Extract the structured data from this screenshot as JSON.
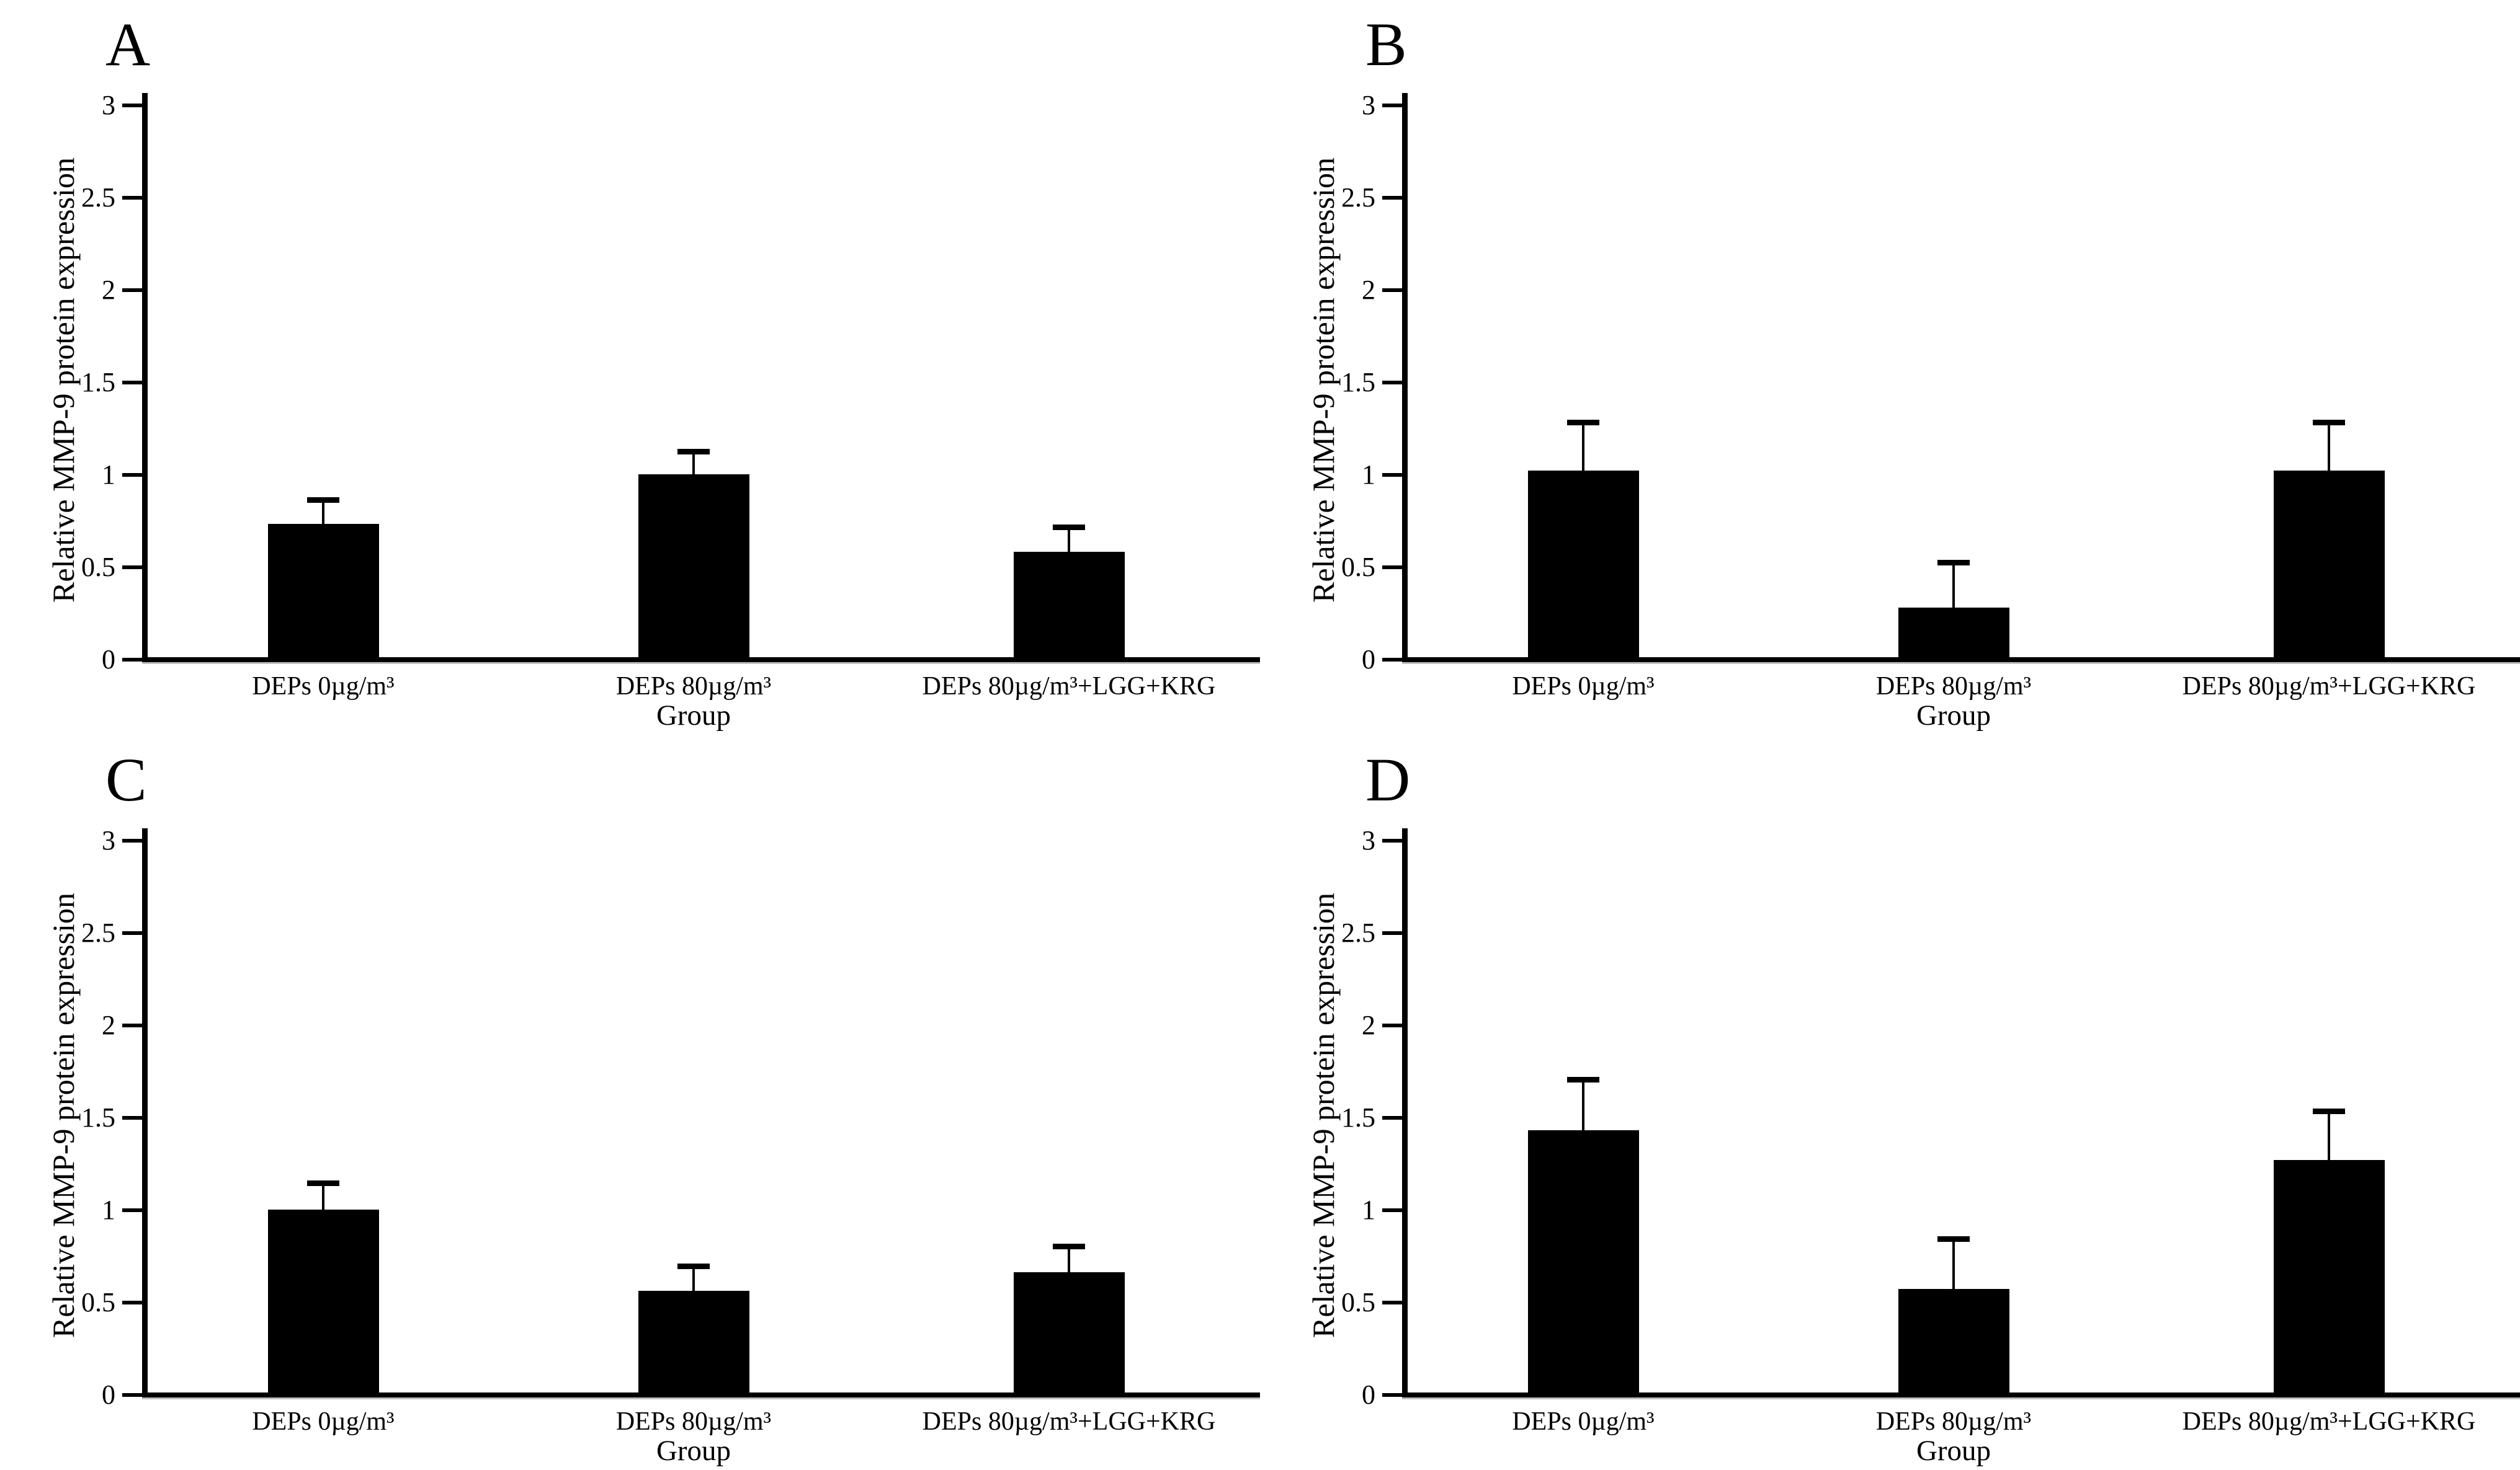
{
  "figure": {
    "background_color": "#ffffff",
    "bar_color": "#000000",
    "axis_color": "#000000",
    "grid": false,
    "legend": null
  },
  "chart_data": [
    {
      "type": "bar",
      "panel": "A",
      "title": "",
      "xlabel": "Group",
      "ylabel": "Relative MMP-9 protein expression",
      "categories": [
        "DEPs 0µg/m³",
        "DEPs 80µg/m³",
        "DEPs 80µg/m³+LGG+KRG"
      ],
      "values": [
        0.72,
        0.99,
        0.57
      ],
      "errors": [
        0.13,
        0.12,
        0.13
      ],
      "ylim": [
        0,
        3.2
      ],
      "yticks": [
        0,
        0.5,
        1,
        1.5,
        2,
        2.5,
        3
      ],
      "ytick_labels": [
        "0",
        "0.5",
        "1",
        "1.5",
        "2",
        "2.5",
        "3"
      ]
    },
    {
      "type": "bar",
      "panel": "B",
      "title": "",
      "xlabel": "Group",
      "ylabel": "Relative MMP-9 protein expression",
      "categories": [
        "DEPs 0µg/m³",
        "DEPs 80µg/m³",
        "DEPs 80µg/m³+LGG+KRG"
      ],
      "values": [
        1.01,
        0.27,
        1.01
      ],
      "errors": [
        0.26,
        0.24,
        0.26
      ],
      "ylim": [
        0,
        3.2
      ],
      "yticks": [
        0,
        0.5,
        1,
        1.5,
        2,
        2.5,
        3
      ],
      "ytick_labels": [
        "0",
        "0.5",
        "1",
        "1.5",
        "2",
        "2.5",
        "3"
      ]
    },
    {
      "type": "bar",
      "panel": "C",
      "title": "",
      "xlabel": "Group",
      "ylabel": "Relative MMP-9 protein expression",
      "categories": [
        "DEPs 0µg/m³",
        "DEPs 80µg/m³",
        "DEPs 80µg/m³+LGG+KRG"
      ],
      "values": [
        0.99,
        0.55,
        0.65
      ],
      "errors": [
        0.14,
        0.13,
        0.14
      ],
      "ylim": [
        0,
        3.2
      ],
      "yticks": [
        0,
        0.5,
        1,
        1.5,
        2,
        2.5,
        3
      ],
      "ytick_labels": [
        "0",
        "0.5",
        "1",
        "1.5",
        "2",
        "2.5",
        "3"
      ]
    },
    {
      "type": "bar",
      "panel": "D",
      "title": "",
      "xlabel": "Group",
      "ylabel": "Relative MMP-9 protein expression",
      "categories": [
        "DEPs 0µg/m³",
        "DEPs 80µg/m³",
        "DEPs 80µg/m³+LGG+KRG"
      ],
      "values": [
        1.42,
        0.56,
        1.26
      ],
      "errors": [
        0.27,
        0.27,
        0.26
      ],
      "ylim": [
        0,
        3.2
      ],
      "yticks": [
        0,
        0.5,
        1,
        1.5,
        2,
        2.5,
        3
      ],
      "ytick_labels": [
        "0",
        "0.5",
        "1",
        "1.5",
        "2",
        "2.5",
        "3"
      ]
    }
  ]
}
